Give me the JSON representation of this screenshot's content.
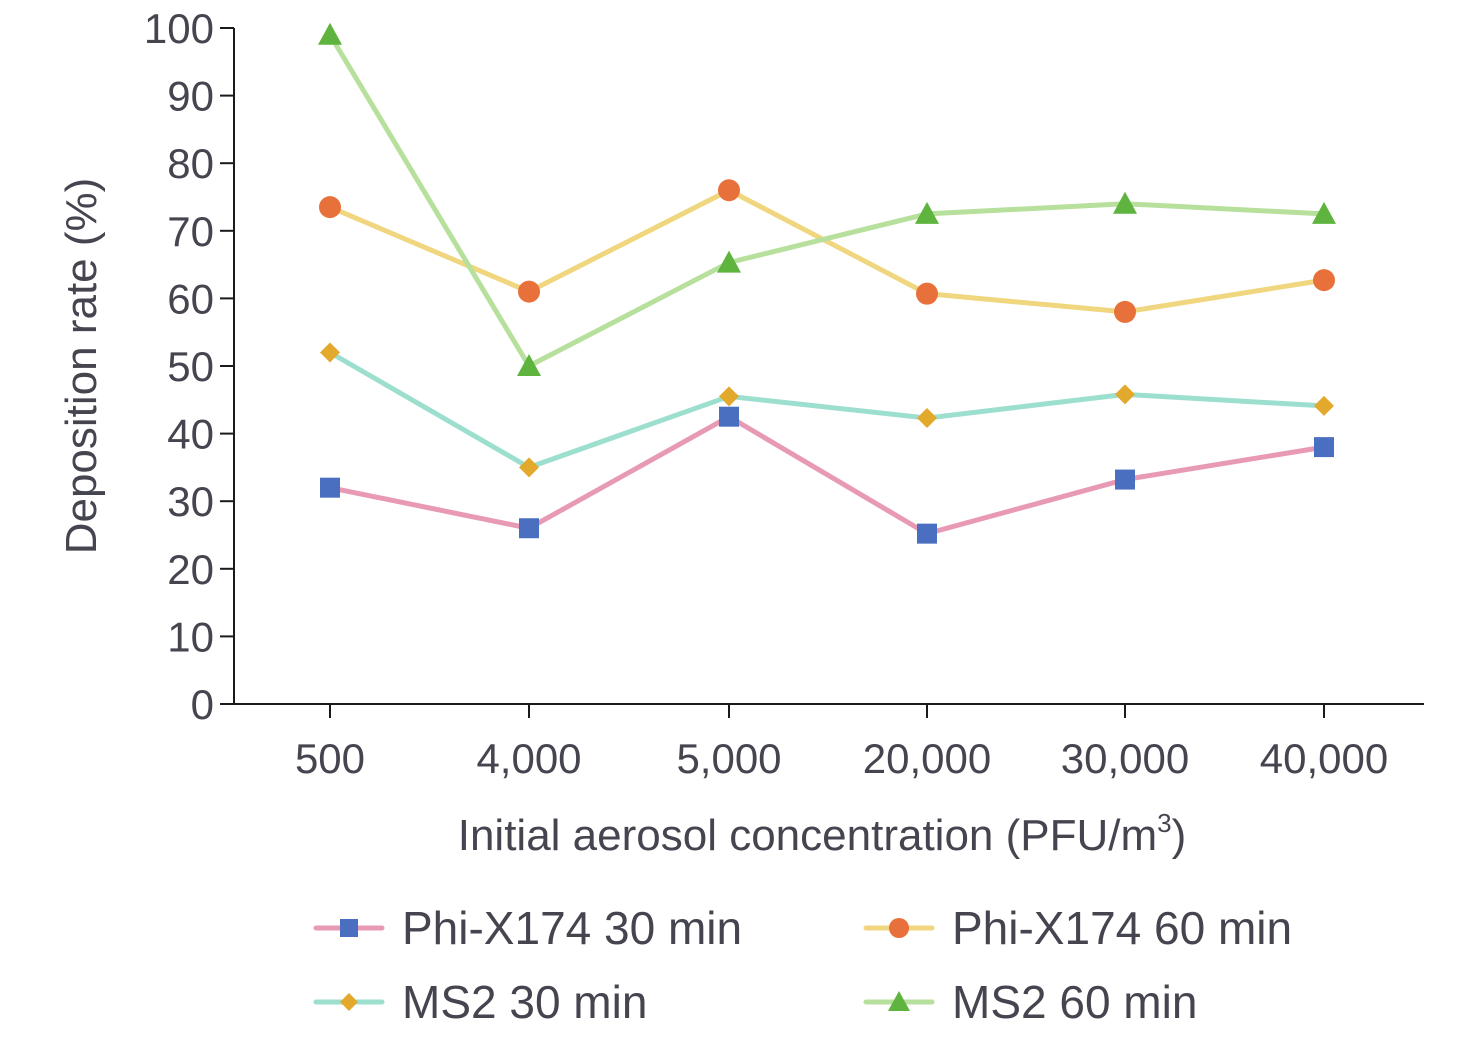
{
  "chart_data": {
    "type": "line",
    "title": "",
    "xlabel": "Initial aerosol concentration (PFU/m",
    "xlabel_superscript": "3",
    "xlabel_suffix": ")",
    "ylabel": "Deposition rate (%)",
    "ylim": [
      0,
      100
    ],
    "yticks": [
      "0",
      "10",
      "20",
      "30",
      "40",
      "50",
      "60",
      "70",
      "80",
      "90",
      "100"
    ],
    "categories": [
      "500",
      "4,000",
      "5,000",
      "20,000",
      "30,000",
      "40,000"
    ],
    "grid": false,
    "legend_position": "bottom",
    "series": [
      {
        "name": "Phi-X174 30 min",
        "marker": "square",
        "line_color": "#e89ab5",
        "marker_color": "#4a6fc1",
        "values": [
          32,
          26,
          42.5,
          25.2,
          33.2,
          38
        ]
      },
      {
        "name": "Phi-X174 60 min",
        "marker": "circle",
        "line_color": "#f0d67e",
        "marker_color": "#e8703a",
        "values": [
          73.5,
          61,
          76,
          60.7,
          58,
          62.7
        ]
      },
      {
        "name": "MS2 30 min",
        "marker": "diamond",
        "line_color": "#9ddfce",
        "marker_color": "#e2a92d",
        "values": [
          52,
          35,
          45.5,
          42.3,
          45.8,
          44.1
        ]
      },
      {
        "name": "MS2 60 min",
        "marker": "triangle",
        "line_color": "#b7e09c",
        "marker_color": "#5fb43f",
        "values": [
          99,
          50,
          65.3,
          72.5,
          74,
          72.5
        ]
      }
    ]
  }
}
